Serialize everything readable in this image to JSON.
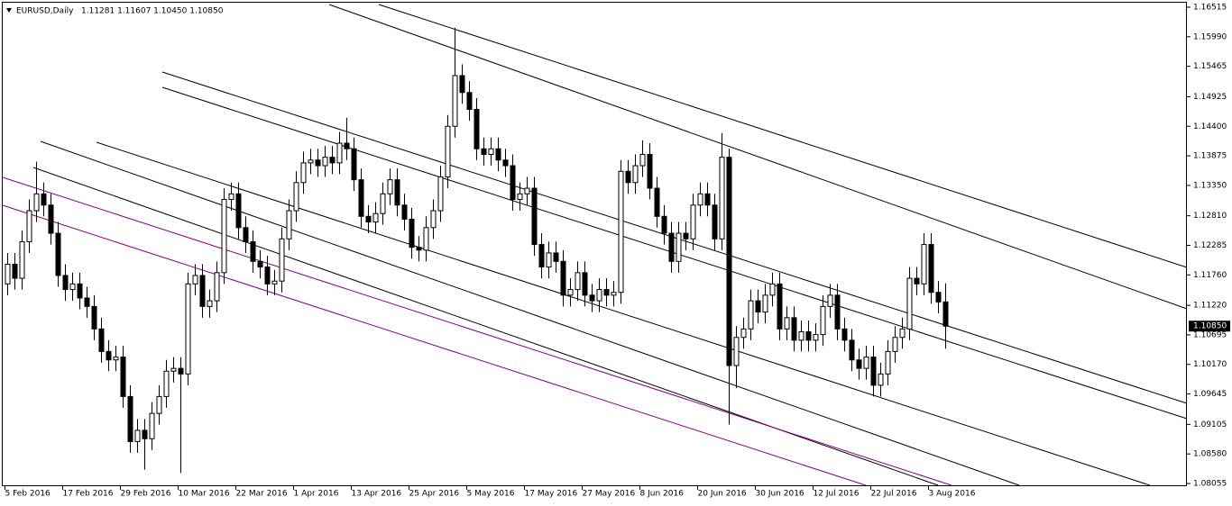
{
  "chart_data": {
    "type": "candlestick",
    "title": "EURUSD,Daily",
    "ohlc_label": "1.11281 1.11607 1.10450 1.10850",
    "categories": [
      "5 Feb 2016",
      null,
      null,
      null,
      null,
      null,
      null,
      null,
      "17 Feb 2016",
      null,
      null,
      null,
      null,
      null,
      null,
      null,
      "29 Feb 2016",
      null,
      null,
      null,
      null,
      null,
      null,
      null,
      "10 Mar 2016",
      null,
      null,
      null,
      null,
      null,
      null,
      null,
      "22 Mar 2016",
      null,
      null,
      null,
      null,
      null,
      null,
      null,
      "1 Apr 2016",
      null,
      null,
      null,
      null,
      null,
      null,
      null,
      "13 Apr 2016",
      null,
      null,
      null,
      null,
      null,
      null,
      null,
      "25 Apr 2016",
      null,
      null,
      null,
      null,
      null,
      null,
      null,
      "5 May 2016",
      null,
      null,
      null,
      null,
      null,
      null,
      null,
      "17 May 2016",
      null,
      null,
      null,
      null,
      null,
      null,
      null,
      "27 May 2016",
      null,
      null,
      null,
      null,
      null,
      null,
      null,
      "8 Jun 2016",
      null,
      null,
      null,
      null,
      null,
      null,
      null,
      "20 Jun 2016",
      null,
      null,
      null,
      null,
      null,
      null,
      null,
      "30 Jun 2016",
      null,
      null,
      null,
      null,
      null,
      null,
      null,
      "12 Jul 2016",
      null,
      null,
      null,
      null,
      null,
      null,
      null,
      "22 Jul 2016",
      null,
      null,
      null,
      null,
      null,
      null,
      null,
      "3 Aug 2016",
      null,
      null
    ],
    "open": [
      1.116,
      1.1195,
      1.117,
      1.1235,
      1.129,
      1.132,
      1.13,
      1.125,
      1.1175,
      1.115,
      1.116,
      1.1135,
      1.112,
      1.108,
      1.104,
      1.1025,
      1.103,
      1.096,
      1.088,
      1.09,
      1.0885,
      1.093,
      1.096,
      1.1005,
      1.101,
      1.1,
      1.116,
      1.1175,
      1.112,
      1.113,
      1.118,
      1.131,
      1.132,
      1.126,
      1.1235,
      1.12,
      1.119,
      1.116,
      1.1165,
      1.124,
      1.129,
      1.134,
      1.1375,
      1.138,
      1.137,
      1.1385,
      1.1375,
      1.141,
      1.14,
      1.1345,
      1.128,
      1.127,
      1.1285,
      1.132,
      1.1345,
      1.13,
      1.1275,
      1.1225,
      1.122,
      1.126,
      1.129,
      1.135,
      1.144,
      1.153,
      1.15,
      1.147,
      1.14,
      1.139,
      1.14,
      1.138,
      1.137,
      1.131,
      1.132,
      1.133,
      1.123,
      1.119,
      1.1215,
      1.12,
      1.114,
      1.115,
      1.118,
      1.114,
      1.113,
      1.115,
      1.114,
      1.1145,
      1.136,
      1.134,
      1.137,
      1.139,
      1.133,
      1.128,
      1.125,
      1.12,
      1.125,
      1.124,
      1.13,
      1.132,
      1.13,
      1.124,
      1.1385,
      1.1015,
      1.1065,
      1.108,
      1.113,
      1.111,
      1.114,
      1.116,
      1.108,
      1.11,
      1.106,
      1.1075,
      1.106,
      1.107,
      1.112,
      1.114,
      1.108,
      1.106,
      1.1025,
      1.101,
      1.103,
      1.098,
      1.1,
      1.104,
      1.1065,
      1.108,
      1.117,
      1.116,
      1.123,
      1.1145,
      1.1128
    ],
    "high": [
      1.1215,
      1.1215,
      1.1255,
      1.131,
      1.1377,
      1.134,
      1.132,
      1.127,
      1.1195,
      1.118,
      1.118,
      1.1155,
      1.114,
      1.11,
      1.106,
      1.105,
      1.105,
      1.098,
      1.092,
      1.092,
      1.095,
      1.098,
      1.1025,
      1.103,
      1.103,
      1.118,
      1.1195,
      1.1195,
      1.115,
      1.12,
      1.133,
      1.134,
      1.134,
      1.128,
      1.1255,
      1.122,
      1.121,
      1.1185,
      1.126,
      1.131,
      1.136,
      1.1395,
      1.14,
      1.14,
      1.1405,
      1.1405,
      1.143,
      1.1455,
      1.142,
      1.1365,
      1.13,
      1.1305,
      1.134,
      1.1365,
      1.1365,
      1.132,
      1.1295,
      1.1245,
      1.128,
      1.131,
      1.137,
      1.146,
      1.1615,
      1.155,
      1.152,
      1.149,
      1.142,
      1.142,
      1.142,
      1.14,
      1.139,
      1.134,
      1.135,
      1.135,
      1.125,
      1.1235,
      1.1235,
      1.122,
      1.117,
      1.12,
      1.12,
      1.116,
      1.117,
      1.117,
      1.1165,
      1.138,
      1.138,
      1.139,
      1.1415,
      1.141,
      1.135,
      1.13,
      1.127,
      1.127,
      1.127,
      1.132,
      1.134,
      1.134,
      1.132,
      1.1428,
      1.14,
      1.1085,
      1.11,
      1.115,
      1.115,
      1.116,
      1.118,
      1.118,
      1.112,
      1.112,
      1.1095,
      1.1095,
      1.109,
      1.114,
      1.116,
      1.116,
      1.11,
      1.108,
      1.1045,
      1.105,
      1.105,
      1.102,
      1.106,
      1.1085,
      1.11,
      1.119,
      1.119,
      1.125,
      1.125,
      1.1165,
      1.1161
    ],
    "low": [
      1.114,
      1.115,
      1.115,
      1.1215,
      1.127,
      1.128,
      1.123,
      1.1155,
      1.113,
      1.113,
      1.1115,
      1.11,
      1.106,
      1.102,
      1.1005,
      1.1005,
      1.094,
      1.086,
      1.086,
      1.083,
      1.0865,
      1.091,
      1.094,
      1.0985,
      1.0824,
      1.098,
      1.114,
      1.11,
      1.11,
      1.111,
      1.116,
      1.129,
      1.124,
      1.1215,
      1.118,
      1.117,
      1.114,
      1.114,
      1.1145,
      1.122,
      1.127,
      1.132,
      1.1355,
      1.135,
      1.135,
      1.1355,
      1.1355,
      1.138,
      1.1325,
      1.126,
      1.125,
      1.125,
      1.1265,
      1.13,
      1.128,
      1.1255,
      1.1205,
      1.12,
      1.12,
      1.124,
      1.127,
      1.133,
      1.142,
      1.148,
      1.145,
      1.138,
      1.137,
      1.137,
      1.136,
      1.135,
      1.129,
      1.129,
      1.13,
      1.121,
      1.117,
      1.117,
      1.118,
      1.112,
      1.112,
      1.113,
      1.112,
      1.111,
      1.111,
      1.112,
      1.112,
      1.1125,
      1.132,
      1.132,
      1.135,
      1.131,
      1.126,
      1.123,
      1.118,
      1.118,
      1.122,
      1.122,
      1.128,
      1.128,
      1.122,
      1.122,
      1.091,
      1.0975,
      1.1045,
      1.106,
      1.109,
      1.109,
      1.112,
      1.106,
      1.106,
      1.104,
      1.104,
      1.104,
      1.104,
      1.105,
      1.11,
      1.106,
      1.104,
      1.1005,
      1.099,
      1.099,
      1.096,
      1.096,
      1.098,
      1.102,
      1.1045,
      1.106,
      1.114,
      1.114,
      1.1125,
      1.1108,
      1.1045
    ],
    "close": [
      1.1195,
      1.117,
      1.1235,
      1.129,
      1.132,
      1.13,
      1.125,
      1.1175,
      1.115,
      1.116,
      1.1135,
      1.112,
      1.108,
      1.104,
      1.1025,
      1.103,
      1.096,
      1.088,
      1.09,
      1.0885,
      1.093,
      1.096,
      1.1005,
      1.101,
      1.1,
      1.116,
      1.1175,
      1.112,
      1.113,
      1.118,
      1.131,
      1.132,
      1.126,
      1.1235,
      1.12,
      1.119,
      1.116,
      1.1165,
      1.124,
      1.129,
      1.134,
      1.1375,
      1.138,
      1.137,
      1.1385,
      1.1375,
      1.141,
      1.14,
      1.1345,
      1.128,
      1.127,
      1.1285,
      1.132,
      1.1345,
      1.13,
      1.1275,
      1.1225,
      1.122,
      1.126,
      1.129,
      1.135,
      1.144,
      1.153,
      1.15,
      1.147,
      1.14,
      1.139,
      1.14,
      1.138,
      1.137,
      1.131,
      1.132,
      1.133,
      1.123,
      1.119,
      1.1215,
      1.12,
      1.114,
      1.115,
      1.118,
      1.114,
      1.113,
      1.115,
      1.114,
      1.1145,
      1.136,
      1.134,
      1.137,
      1.139,
      1.133,
      1.128,
      1.125,
      1.12,
      1.125,
      1.124,
      1.13,
      1.132,
      1.13,
      1.124,
      1.1385,
      1.1015,
      1.1065,
      1.108,
      1.113,
      1.111,
      1.114,
      1.116,
      1.108,
      1.11,
      1.106,
      1.1075,
      1.106,
      1.107,
      1.112,
      1.114,
      1.108,
      1.106,
      1.1025,
      1.101,
      1.103,
      1.098,
      1.1,
      1.104,
      1.1065,
      1.108,
      1.117,
      1.116,
      1.123,
      1.1145,
      1.1128,
      1.1085
    ],
    "ylim": [
      1.08007,
      1.16595
    ],
    "yticks": [
      1.16515,
      {
        "value": 1.1599,
        "label": "1.15990"
      },
      1.15465,
      1.14925,
      {
        "value": 1.144,
        "label": "1.14400"
      },
      1.13875,
      {
        "value": 1.1335,
        "label": "1.13350"
      },
      {
        "value": 1.1281,
        "label": "1.12810"
      },
      1.12285,
      {
        "value": 1.1176,
        "label": "1.11760"
      },
      {
        "value": 1.1122,
        "label": "1.11220"
      },
      1.10695,
      {
        "value": 1.1017,
        "label": "1.10170"
      },
      1.09645,
      1.09105,
      {
        "value": 1.0858,
        "label": "1.08580"
      },
      1.08055
    ],
    "last_price": {
      "value": 1.1085,
      "label": "1.10850"
    },
    "bull_color": "#ffffff",
    "bear_color": "#000000",
    "outline_color": "#000000"
  }
}
